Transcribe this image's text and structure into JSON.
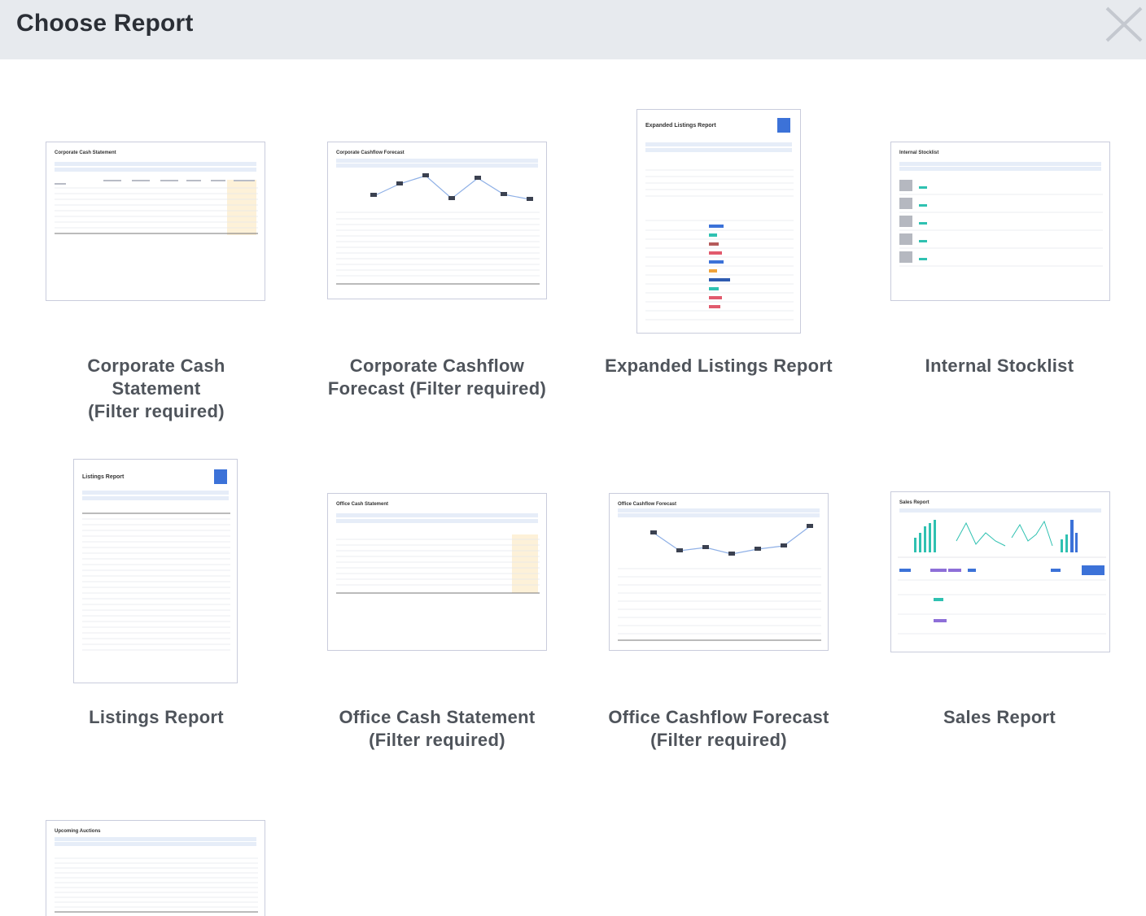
{
  "header": {
    "title": "Choose Report",
    "close_icon": "close-icon"
  },
  "reports": [
    {
      "id": "corporate-cash-statement",
      "label": "Corporate Cash\nStatement\n(Filter required)",
      "thumb_title": "Corporate Cash Statement"
    },
    {
      "id": "corporate-cashflow-forecast",
      "label": "Corporate Cashflow\nForecast (Filter required)",
      "thumb_title": "Corporate Cashflow Forecast"
    },
    {
      "id": "expanded-listings-report",
      "label": "Expanded Listings Report",
      "thumb_title": "Expanded Listings Report"
    },
    {
      "id": "internal-stocklist",
      "label": "Internal Stocklist",
      "thumb_title": "Internal Stocklist"
    },
    {
      "id": "listings-report",
      "label": "Listings Report",
      "thumb_title": "Listings Report"
    },
    {
      "id": "office-cash-statement",
      "label": "Office Cash Statement\n(Filter required)",
      "thumb_title": "Office Cash Statement"
    },
    {
      "id": "office-cashflow-forecast",
      "label": "Office Cashflow Forecast\n(Filter required)",
      "thumb_title": "Office Cashflow Forecast"
    },
    {
      "id": "sales-report",
      "label": "Sales Report",
      "thumb_title": "Sales Report"
    },
    {
      "id": "upcoming-auctions",
      "label": "",
      "thumb_title": "Upcoming Auctions"
    }
  ],
  "colors": {
    "header_bg": "#e7eaee",
    "accent_blue": "#3c72d8",
    "highlight": "#fdf1d8",
    "teal": "#2fc1b1"
  }
}
